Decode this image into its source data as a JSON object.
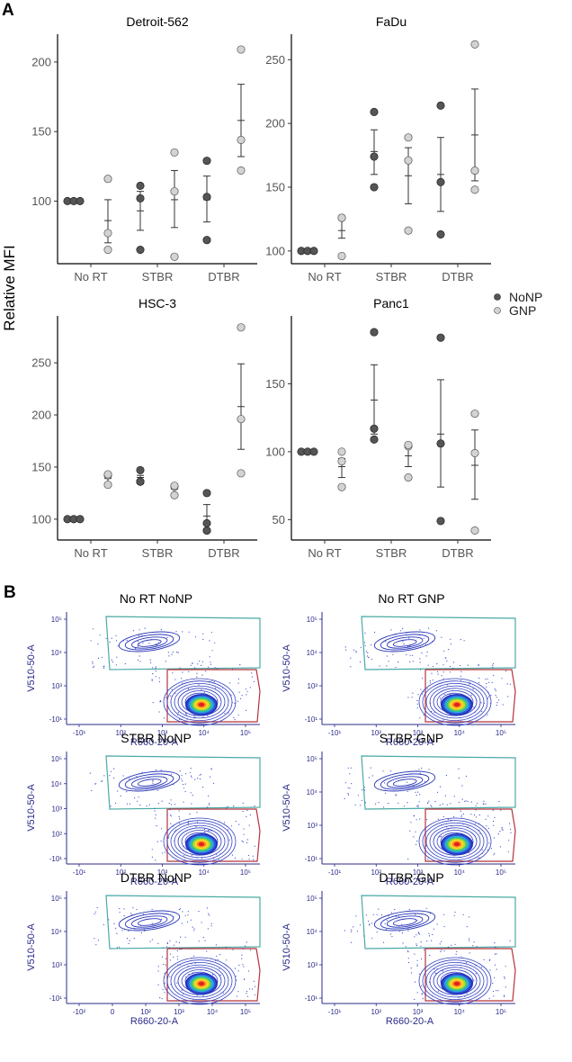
{
  "panels": {
    "A": "A",
    "B": "B"
  },
  "y_axis_label": "Relative MFI",
  "legend": [
    {
      "label": "NoNP",
      "color": "#555555"
    },
    {
      "label": "GNP",
      "color": "#d3d3d3"
    }
  ],
  "chart_data": [
    {
      "type": "scatter",
      "title": "Detroit-562",
      "categories": [
        "No RT",
        "STBR",
        "DTBR"
      ],
      "ylim": [
        55,
        220
      ],
      "yticks": [
        100,
        150,
        200
      ],
      "series": [
        {
          "name": "NoNP",
          "points": [
            [
              100,
              100,
              100
            ],
            [
              65,
              102,
              111
            ],
            [
              72,
              103,
              129
            ]
          ],
          "mean": [
            100,
            93,
            101
          ],
          "err": [
            [
              100,
              100
            ],
            [
              79,
              107
            ],
            [
              85,
              118
            ]
          ]
        },
        {
          "name": "GNP",
          "points": [
            [
              65,
              77,
              116
            ],
            [
              60,
              107,
              135
            ],
            [
              122,
              144,
              209
            ]
          ],
          "mean": [
            86,
            101,
            158
          ],
          "err": [
            [
              70,
              101
            ],
            [
              81,
              122
            ],
            [
              132,
              184
            ]
          ]
        }
      ]
    },
    {
      "type": "scatter",
      "title": "FaDu",
      "categories": [
        "No RT",
        "STBR",
        "DTBR"
      ],
      "ylim": [
        90,
        270
      ],
      "yticks": [
        100,
        150,
        200,
        250
      ],
      "series": [
        {
          "name": "NoNP",
          "points": [
            [
              100,
              100,
              100
            ],
            [
              150,
              174,
              209
            ],
            [
              113,
              154,
              214
            ]
          ],
          "mean": [
            100,
            178,
            160
          ],
          "err": [
            [
              100,
              100
            ],
            [
              160,
              195
            ],
            [
              131,
              189
            ]
          ]
        },
        {
          "name": "GNP",
          "points": [
            [
              96,
              126,
              126
            ],
            [
              116,
              171,
              189
            ],
            [
              148,
              163,
              262
            ]
          ],
          "mean": [
            116,
            159,
            191
          ],
          "err": [
            [
              110,
              126
            ],
            [
              137,
              181
            ],
            [
              155,
              227
            ]
          ]
        }
      ]
    },
    {
      "type": "scatter",
      "title": "HSC-3",
      "categories": [
        "No RT",
        "STBR",
        "DTBR"
      ],
      "ylim": [
        80,
        295
      ],
      "yticks": [
        100,
        150,
        200,
        250
      ],
      "series": [
        {
          "name": "NoNP",
          "points": [
            [
              100,
              100,
              100
            ],
            [
              136,
              136,
              147
            ],
            [
              89,
              96,
              125
            ]
          ],
          "mean": [
            100,
            140,
            103
          ],
          "err": [
            [
              100,
              100
            ],
            [
              134,
              142
            ],
            [
              91,
              114
            ]
          ]
        },
        {
          "name": "GNP",
          "points": [
            [
              133,
              142,
              143
            ],
            [
              123,
              131,
              132
            ],
            [
              144,
              196,
              284
            ]
          ],
          "mean": [
            139,
            129,
            208
          ],
          "err": [
            [
              133,
              143
            ],
            [
              124,
              132
            ],
            [
              167,
              249
            ]
          ]
        }
      ]
    },
    {
      "type": "scatter",
      "title": "Panc1",
      "categories": [
        "No RT",
        "STBR",
        "DTBR"
      ],
      "ylim": [
        35,
        200
      ],
      "yticks": [
        50,
        100,
        150
      ],
      "series": [
        {
          "name": "NoNP",
          "points": [
            [
              100,
              100,
              100
            ],
            [
              109,
              117,
              188
            ],
            [
              49,
              106,
              184
            ]
          ],
          "mean": [
            100,
            138,
            113
          ],
          "err": [
            [
              100,
              100
            ],
            [
              113,
              164
            ],
            [
              74,
              153
            ]
          ]
        },
        {
          "name": "GNP",
          "points": [
            [
              74,
              93,
              100
            ],
            [
              81,
              104,
              105
            ],
            [
              42,
              99,
              128
            ]
          ],
          "mean": [
            89,
            97,
            90
          ],
          "err": [
            [
              81,
              95
            ],
            [
              89,
              105
            ],
            [
              65,
              116
            ]
          ]
        }
      ]
    }
  ],
  "flow_plots": [
    {
      "title": "No RT NoNP",
      "xlabel": "R660-20-A",
      "ylabel": "V510-50-A",
      "yticks": [
        "10⁵",
        "10⁴",
        "10³",
        "-10¹"
      ],
      "xticks": [
        "-10¹",
        "10²",
        "10³",
        "10⁴",
        "10⁵"
      ]
    },
    {
      "title": "No RT GNP",
      "xlabel": "R660-20-A",
      "ylabel": "V510-50-A",
      "yticks": [
        "10⁵",
        "10⁴",
        "10³",
        "-10¹"
      ],
      "xticks": [
        "-10¹",
        "10²",
        "10³",
        "10⁴",
        "10⁵"
      ]
    },
    {
      "title": "STBR NoNP",
      "xlabel": "R660-20-A",
      "ylabel": "V510-50-A",
      "yticks": [
        "10⁵",
        "10⁴",
        "10³",
        "10²",
        "-10¹"
      ],
      "xticks": [
        "-10¹",
        "10²",
        "10³",
        "10⁴",
        "10⁵"
      ]
    },
    {
      "title": "STBR GNP",
      "xlabel": "R660-20-A",
      "ylabel": "V510-50-A",
      "yticks": [
        "10⁵",
        "10⁴",
        "10³",
        "-10¹"
      ],
      "xticks": [
        "-10¹",
        "10²",
        "10³",
        "10⁴",
        "10⁵"
      ]
    },
    {
      "title": "DTBR NoNP",
      "xlabel": "R660-20-A",
      "ylabel": "V510-50-A",
      "yticks": [
        "10⁵",
        "10⁴",
        "10³",
        "-10¹"
      ],
      "xticks": [
        "-10²",
        "0",
        "10²",
        "10³",
        "10⁴",
        "10⁵"
      ]
    },
    {
      "title": "DTBR GNP",
      "xlabel": "R660-20-A",
      "ylabel": "V510-50-A",
      "yticks": [
        "10⁵",
        "10⁴",
        "10³",
        "-10¹"
      ],
      "xticks": [
        "-10¹",
        "10²",
        "10³",
        "10⁴",
        "10⁵"
      ]
    }
  ]
}
